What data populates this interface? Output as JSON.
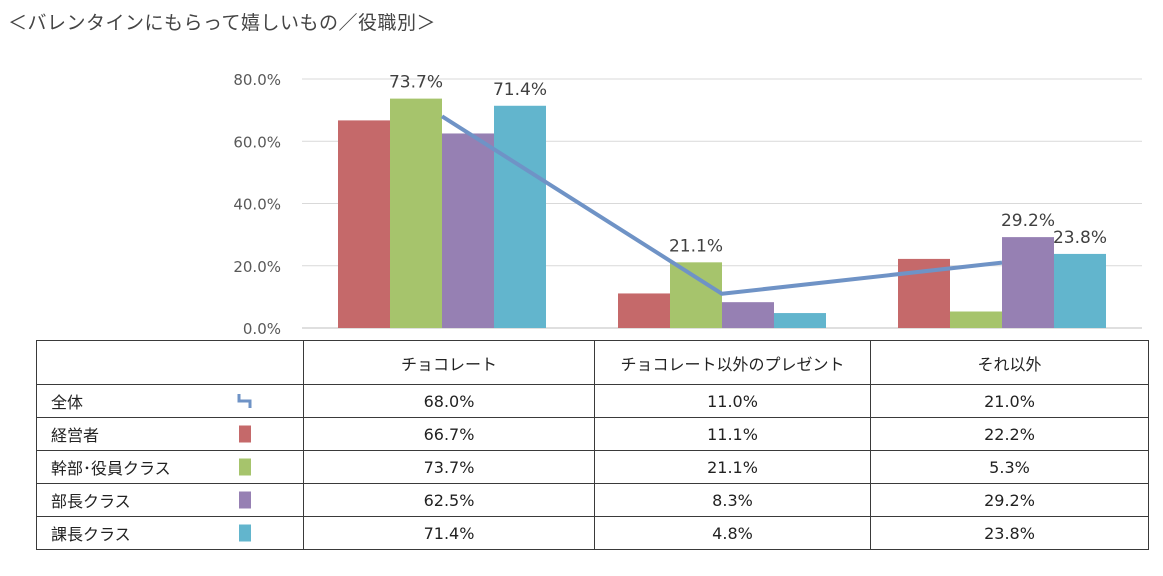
{
  "title": "＜バレンタインにもらって嬉しいもの／役職別＞",
  "chart_data": {
    "type": "bar",
    "categories": [
      "チョコレート",
      "チョコレート以外のプレゼント",
      "それ以外"
    ],
    "series": [
      {
        "name": "経営者",
        "values": [
          66.7,
          11.1,
          22.2
        ],
        "color": "#c5696a"
      },
      {
        "name": "幹部･役員クラス",
        "values": [
          73.7,
          21.1,
          5.3
        ],
        "color": "#a6c46c"
      },
      {
        "name": "部長クラス",
        "values": [
          62.5,
          8.3,
          29.2
        ],
        "color": "#9680b3"
      },
      {
        "name": "課長クラス",
        "values": [
          71.4,
          4.8,
          23.8
        ],
        "color": "#62b5cd"
      }
    ],
    "line": {
      "name": "全体",
      "values": [
        68.0,
        11.0,
        21.0
      ],
      "color": "#6f93c6"
    },
    "ylim": [
      0,
      80
    ],
    "yticks": [
      "0.0%",
      "20.0%",
      "40.0%",
      "60.0%",
      "80.0%"
    ],
    "data_labels": [
      {
        "category": 0,
        "series": 1,
        "text": "73.7%"
      },
      {
        "category": 0,
        "series": 3,
        "text": "71.4%"
      },
      {
        "category": 1,
        "series": 1,
        "text": "21.1%"
      },
      {
        "category": 2,
        "series": 2,
        "text": "29.2%"
      },
      {
        "category": 2,
        "series": 3,
        "text": "23.8%"
      }
    ],
    "grid": true
  },
  "table": {
    "headers": [
      "チョコレート",
      "チョコレート以外のプレゼント",
      "それ以外"
    ],
    "rows": [
      {
        "label": "全体",
        "marker": "line",
        "color": "#6f93c6",
        "cells": [
          "68.0%",
          "11.0%",
          "21.0%"
        ]
      },
      {
        "label": "経営者",
        "marker": "box",
        "color": "#c5696a",
        "cells": [
          "66.7%",
          "11.1%",
          "22.2%"
        ]
      },
      {
        "label": "幹部･役員クラス",
        "marker": "box",
        "color": "#a6c46c",
        "cells": [
          "73.7%",
          "21.1%",
          "5.3%"
        ]
      },
      {
        "label": "部長クラス",
        "marker": "box",
        "color": "#9680b3",
        "cells": [
          "62.5%",
          "8.3%",
          "29.2%"
        ]
      },
      {
        "label": "課長クラス",
        "marker": "box",
        "color": "#62b5cd",
        "cells": [
          "71.4%",
          "4.8%",
          "23.8%"
        ]
      }
    ]
  }
}
